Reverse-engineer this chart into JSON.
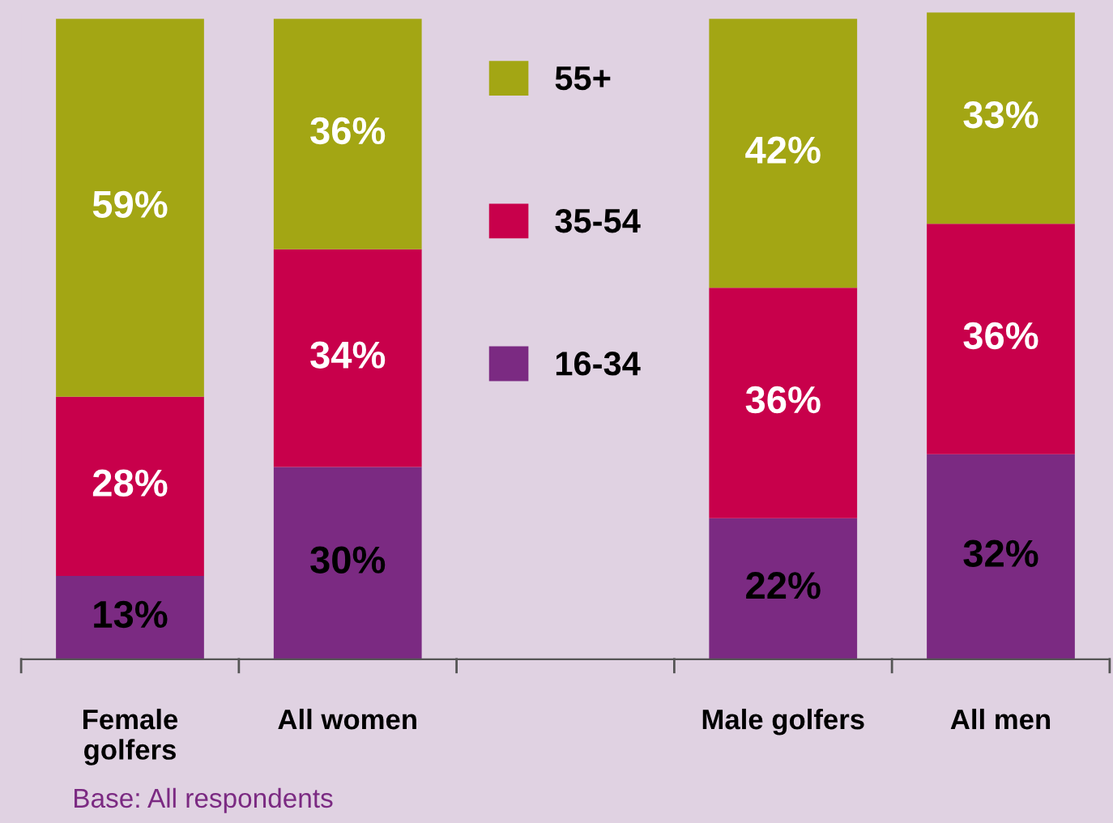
{
  "chart_data": {
    "type": "bar",
    "stacked": true,
    "legend": "top",
    "categories": [
      "Female golfers",
      "All women",
      null,
      "Male golfers",
      "All men"
    ],
    "series": [
      {
        "name": "16-34",
        "color": "#7b2a82",
        "values": [
          13,
          30,
          null,
          22,
          32
        ],
        "value_labels": [
          "13%",
          "30%",
          null,
          "22%",
          "32%"
        ]
      },
      {
        "name": "35-54",
        "color": "#c8004b",
        "values": [
          28,
          34,
          null,
          36,
          36
        ],
        "value_labels": [
          "28%",
          "34%",
          null,
          "36%",
          "36%"
        ]
      },
      {
        "name": "55+",
        "color": "#a3a614",
        "values": [
          59,
          36,
          null,
          42,
          33
        ],
        "value_labels": [
          "59%",
          "36%",
          null,
          "42%",
          "33%"
        ]
      }
    ],
    "annotations": [
      "Base: All respondents"
    ]
  }
}
